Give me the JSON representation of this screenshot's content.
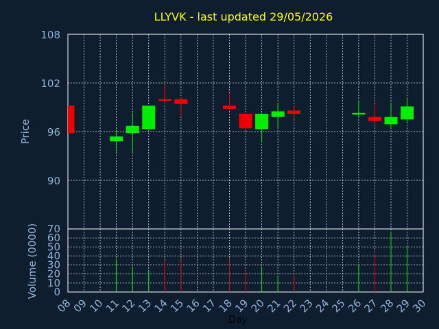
{
  "chart_data": {
    "type": "candlestick",
    "title": "LLYVK - last updated 29/05/2026",
    "colors": {
      "background": "#0f1e2e",
      "title": "#ffff00",
      "axis_text": "#8fb3d9",
      "frame": "#ffffff",
      "up": "#00ee00",
      "down": "#ee0000"
    },
    "xlabel": "Day",
    "x_ticks": [
      "08",
      "09",
      "10",
      "11",
      "12",
      "13",
      "14",
      "15",
      "16",
      "17",
      "18",
      "19",
      "20",
      "21",
      "22",
      "23",
      "24",
      "25",
      "26",
      "27",
      "28",
      "29",
      "30"
    ],
    "price_panel": {
      "ylabel": "Price",
      "ylim": [
        84,
        108
      ],
      "y_ticks": [
        "90",
        "96",
        "102",
        "108"
      ],
      "grid": true
    },
    "volume_panel": {
      "ylabel": "Volume (0000)",
      "ylim": [
        0,
        70
      ],
      "y_ticks": [
        "0",
        "10",
        "20",
        "30",
        "40",
        "50",
        "60",
        "70"
      ],
      "grid": true
    },
    "candles": [
      {
        "day": "08",
        "open": 99.2,
        "high": 99.2,
        "low": 95.8,
        "close": 95.8,
        "volume": 0
      },
      {
        "day": "11",
        "open": 94.8,
        "high": 96.2,
        "low": 93.5,
        "close": 95.4,
        "volume": 37
      },
      {
        "day": "12",
        "open": 95.8,
        "high": 98.3,
        "low": 93.5,
        "close": 96.7,
        "volume": 28
      },
      {
        "day": "13",
        "open": 96.3,
        "high": 99.2,
        "low": 96.3,
        "close": 99.2,
        "volume": 24
      },
      {
        "day": "14",
        "open": 100.0,
        "high": 101.9,
        "low": 99.4,
        "close": 99.8,
        "volume": 35
      },
      {
        "day": "15",
        "open": 100.0,
        "high": 100.2,
        "low": 97.8,
        "close": 99.4,
        "volume": 36
      },
      {
        "day": "18",
        "open": 99.2,
        "high": 100.8,
        "low": 98.7,
        "close": 98.8,
        "volume": 36
      },
      {
        "day": "19",
        "open": 98.2,
        "high": 98.2,
        "low": 96.3,
        "close": 96.4,
        "volume": 24
      },
      {
        "day": "20",
        "open": 96.3,
        "high": 98.3,
        "low": 94.6,
        "close": 98.2,
        "volume": 28
      },
      {
        "day": "21",
        "open": 97.8,
        "high": 99.5,
        "low": 96.5,
        "close": 98.5,
        "volume": 18
      },
      {
        "day": "22",
        "open": 98.6,
        "high": 99.1,
        "low": 97.5,
        "close": 98.2,
        "volume": 18
      },
      {
        "day": "26",
        "open": 98.1,
        "high": 99.9,
        "low": 97.8,
        "close": 98.3,
        "volume": 30
      },
      {
        "day": "27",
        "open": 97.8,
        "high": 99.4,
        "low": 97.0,
        "close": 97.3,
        "volume": 42
      },
      {
        "day": "28",
        "open": 96.9,
        "high": 99.6,
        "low": 96.4,
        "close": 97.8,
        "volume": 67
      },
      {
        "day": "29",
        "open": 97.5,
        "high": 100.1,
        "low": 97.0,
        "close": 99.1,
        "volume": 50
      }
    ]
  }
}
